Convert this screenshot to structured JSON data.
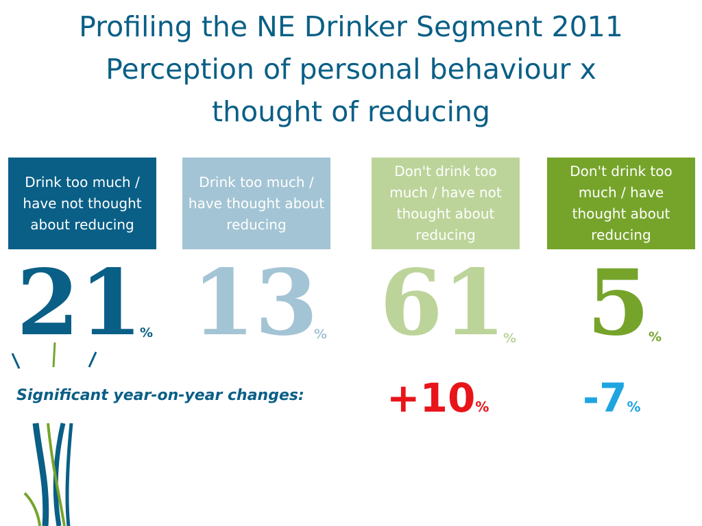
{
  "title": {
    "line1": "Profiling the NE Drinker Segment 2011",
    "line2": "Perception of personal behaviour x",
    "line3": "thought of reducing"
  },
  "segments": [
    {
      "label": "Drink too much / have not thought about reducing",
      "value": "21",
      "unit": "%",
      "color": "#0a5f86",
      "text_color": "#ffffff"
    },
    {
      "label": "Drink too much / have thought about reducing",
      "value": "13",
      "unit": "%",
      "color": "#a3c4d4",
      "text_color": "#ffffff"
    },
    {
      "label": "Don't drink too much / have not thought about reducing",
      "value": "61",
      "unit": "%",
      "color": "#bcd49a",
      "text_color": "#ffffff"
    },
    {
      "label": "Don't drink too much  / have thought about reducing",
      "value": "5",
      "unit": "%",
      "color": "#76a42b",
      "text_color": "#ffffff"
    }
  ],
  "changes": {
    "label": "Significant year-on-year changes:",
    "items": [
      {
        "value": "+10",
        "unit": "%",
        "color": "#e8141a"
      },
      {
        "value": "-7",
        "unit": "%",
        "color": "#1ea4e0"
      }
    ]
  }
}
